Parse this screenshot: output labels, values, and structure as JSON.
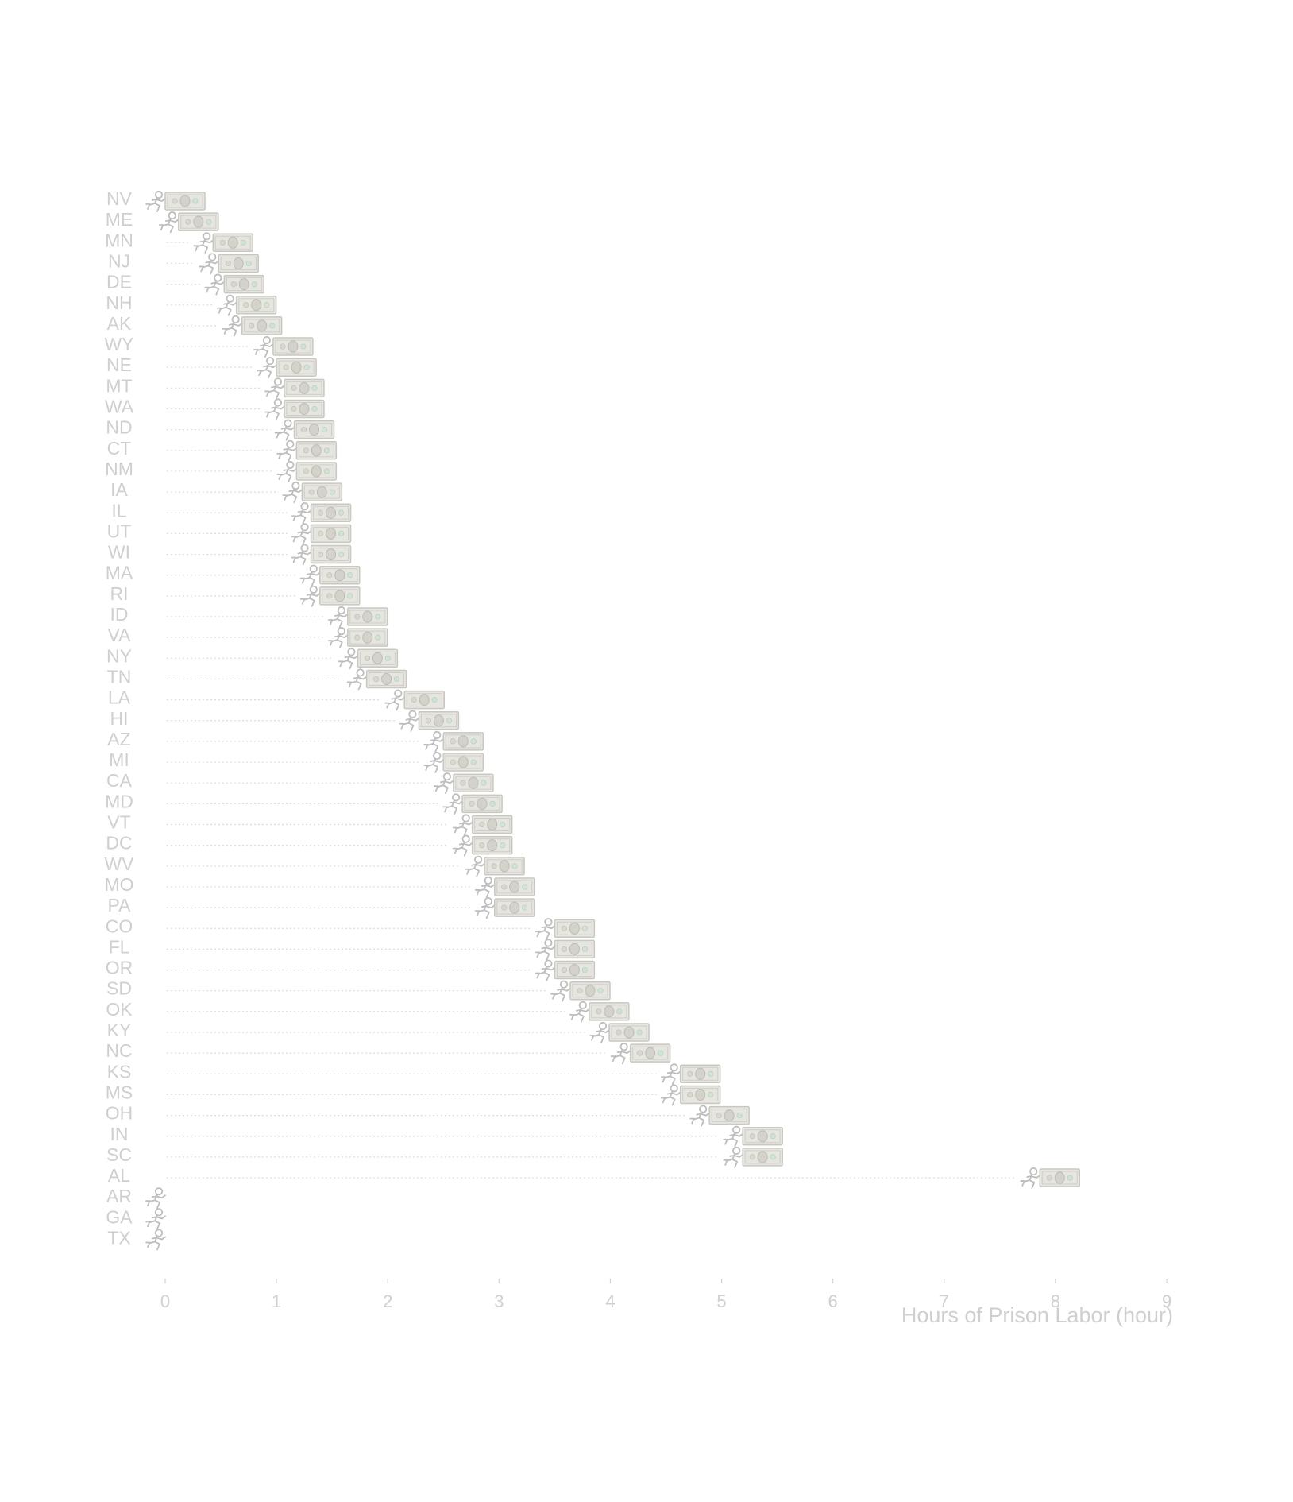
{
  "chart_data": {
    "type": "bar",
    "categories": [
      "NV",
      "ME",
      "MN",
      "NJ",
      "DE",
      "NH",
      "AK",
      "WY",
      "NE",
      "MT",
      "WA",
      "ND",
      "CT",
      "NM",
      "IA",
      "IL",
      "UT",
      "WI",
      "MA",
      "RI",
      "ID",
      "VA",
      "NY",
      "TN",
      "LA",
      "HI",
      "AZ",
      "MI",
      "CA",
      "MD",
      "VT",
      "DC",
      "WV",
      "MO",
      "PA",
      "CO",
      "FL",
      "OR",
      "SD",
      "OK",
      "KY",
      "NC",
      "KS",
      "MS",
      "OH",
      "IN",
      "SC",
      "AL",
      "AR",
      "GA",
      "TX"
    ],
    "values": [
      0.0,
      0.12,
      0.43,
      0.48,
      0.53,
      0.64,
      0.69,
      0.97,
      1.0,
      1.07,
      1.07,
      1.16,
      1.18,
      1.18,
      1.23,
      1.31,
      1.31,
      1.31,
      1.39,
      1.39,
      1.64,
      1.64,
      1.73,
      1.81,
      2.15,
      2.28,
      2.5,
      2.5,
      2.59,
      2.67,
      2.76,
      2.76,
      2.87,
      2.96,
      2.96,
      3.5,
      3.5,
      3.5,
      3.64,
      3.81,
      3.99,
      4.18,
      4.63,
      4.63,
      4.89,
      5.19,
      5.19,
      7.86,
      null,
      null,
      null
    ],
    "xlabel": "Hours of Prison Labor (hour)",
    "ylabel": "",
    "xlim": [
      0,
      9
    ],
    "xticks": [
      "0",
      "1",
      "2",
      "3",
      "4",
      "5",
      "6",
      "7",
      "8",
      "9"
    ],
    "grid": false,
    "legend": "none",
    "marker_icons": [
      "running-person-icon",
      "dollar-bill-icon"
    ],
    "colors": {
      "text": "#cfcfcf",
      "bill": "#e6e5e0",
      "bill_seal": "#cfe3d6",
      "runner": "#bdbdbd"
    }
  }
}
